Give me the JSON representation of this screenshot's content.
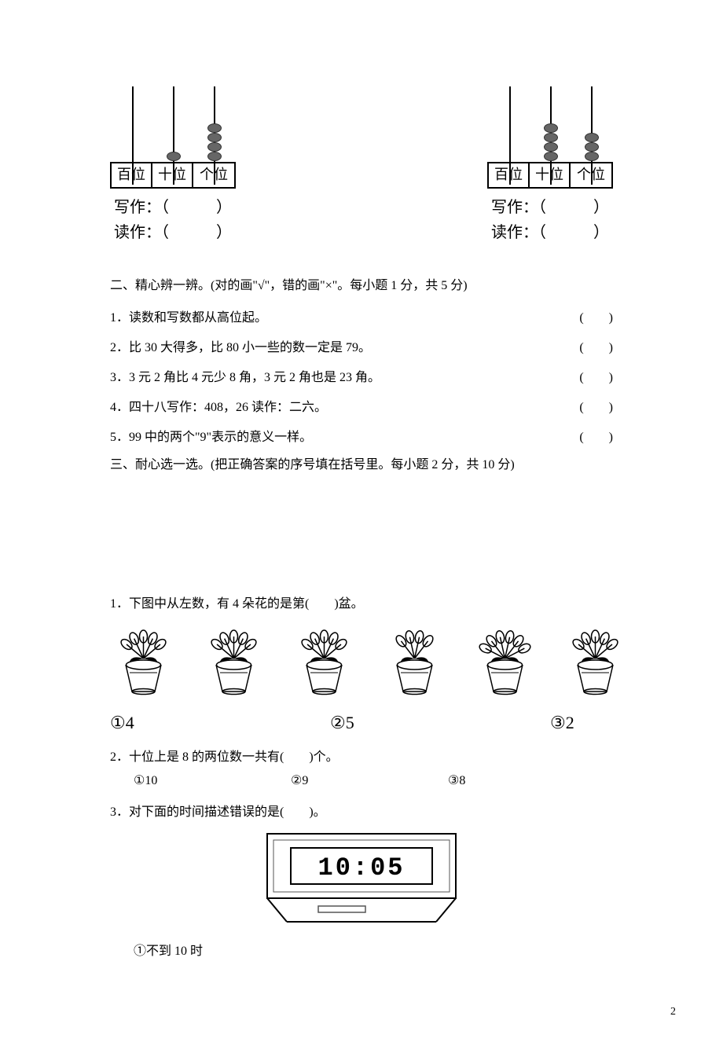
{
  "abacus": {
    "labels": [
      "百位",
      "十位",
      "个位"
    ],
    "write_label": "写作：（　　　）",
    "read_label": "读作：（　　　）",
    "left": {
      "beads": [
        0,
        1,
        4
      ]
    },
    "right": {
      "beads": [
        0,
        4,
        3
      ]
    }
  },
  "section2": {
    "title": "二、精心辨一辨。(对的画\"√\"，错的画\"×\"。每小题 1 分，共 5 分)",
    "paren": "(　　)",
    "items": [
      "1．读数和写数都从高位起。",
      "2．比 30 大得多，比 80 小一些的数一定是 79。",
      "3．3 元 2 角比 4 元少 8 角，3 元 2 角也是 23 角。",
      "4．四十八写作：408，26 读作：二六。",
      "5．99 中的两个\"9\"表示的意义一样。"
    ]
  },
  "section3": {
    "title": "三、耐心选一选。(把正确答案的序号填在括号里。每小题 2 分，共 10 分)",
    "q1": {
      "text": "1．下图中从左数，有 4 朵花的是第(　　)盆。",
      "pot_flower_counts": [
        5,
        5,
        5,
        4,
        6,
        5
      ],
      "options": [
        "①4",
        "②5",
        "③2"
      ]
    },
    "q2": {
      "text": "2．十位上是 8 的两位数一共有(　　)个。",
      "options": [
        "①10",
        "②9",
        "③8"
      ]
    },
    "q3": {
      "text": "3．对下面的时间描述错误的是(　　)。",
      "clock_time": "10:05",
      "option1": "①不到 10 时"
    }
  },
  "page_number": "2"
}
